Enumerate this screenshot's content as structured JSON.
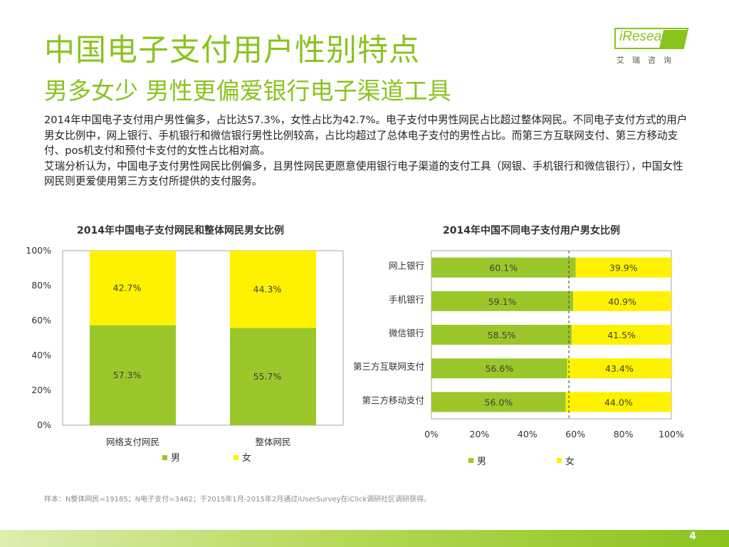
{
  "header": {
    "title": "中国电子支付用户性别特点",
    "subtitle": "男多女少 男性更偏爱银行电子渠道工具"
  },
  "logo": {
    "name": "iResearch",
    "sub": "艾瑞咨询"
  },
  "body": {
    "paragraph1": "2014年中国电子支付用户男性偏多，占比达57.3%，女性占比为42.7%。电子支付中男性网民占比超过整体网民。不同电子支付方式的用户男女比例中，网上银行、手机银行和微信银行男性比例较高，占比均超过了总体电子支付的男性占比。而第三方互联网支付、第三方移动支付、pos机支付和预付卡支付的女性占比相对高。",
    "paragraph2": "艾瑞分析认为，中国电子支付男性网民比例偏多，且男性网民更愿意使用银行电子渠道的支付工具（网银、手机银行和微信银行），中国女性网民则更爱使用第三方支付所提供的支付服务。"
  },
  "colors": {
    "male": "#9bc72a",
    "female": "#fff200",
    "brand": "#8bc31e"
  },
  "chart_data": [
    {
      "type": "bar",
      "orientation": "vertical",
      "stacked": true,
      "title": "2014年中国电子支付网民和整体网民男女比例",
      "categories": [
        "网络支付网民",
        "整体网民"
      ],
      "series": [
        {
          "name": "男",
          "values": [
            57.3,
            55.7
          ],
          "labels": [
            "57.3%",
            "55.7%"
          ]
        },
        {
          "name": "女",
          "values": [
            42.7,
            44.3
          ],
          "labels": [
            "42.7%",
            "44.3%"
          ]
        }
      ],
      "ylim": [
        0,
        100
      ],
      "yticks": [
        "0%",
        "20%",
        "40%",
        "60%",
        "80%",
        "100%"
      ],
      "legend": [
        "男",
        "女"
      ],
      "legend_position": "bottom"
    },
    {
      "type": "bar",
      "orientation": "horizontal",
      "stacked": true,
      "title": "2014年中国不同电子支付用户男女比例",
      "categories": [
        "网上银行",
        "手机银行",
        "微信银行",
        "第三方互联网支付",
        "第三方移动支付"
      ],
      "series": [
        {
          "name": "男",
          "values": [
            60.1,
            59.1,
            58.5,
            56.6,
            56.0
          ],
          "labels": [
            "60.1%",
            "59.1%",
            "58.5%",
            "56.6%",
            "56.0%"
          ]
        },
        {
          "name": "女",
          "values": [
            39.9,
            40.9,
            41.5,
            43.4,
            44.0
          ],
          "labels": [
            "39.9%",
            "40.9%",
            "41.5%",
            "43.4%",
            "44.0%"
          ]
        }
      ],
      "xlim": [
        0,
        100
      ],
      "xticks": [
        "0%",
        "20%",
        "40%",
        "60%",
        "80%",
        "100%"
      ],
      "reference_line": 57.3,
      "legend": [
        "男",
        "女"
      ],
      "legend_position": "bottom"
    }
  ],
  "footnote": "样本：N整体网民=19185；N电子支付=3462；于2015年1月-2015年2月通过iUserSurvey在iClick调研社区调研获得。",
  "page_number": "4"
}
